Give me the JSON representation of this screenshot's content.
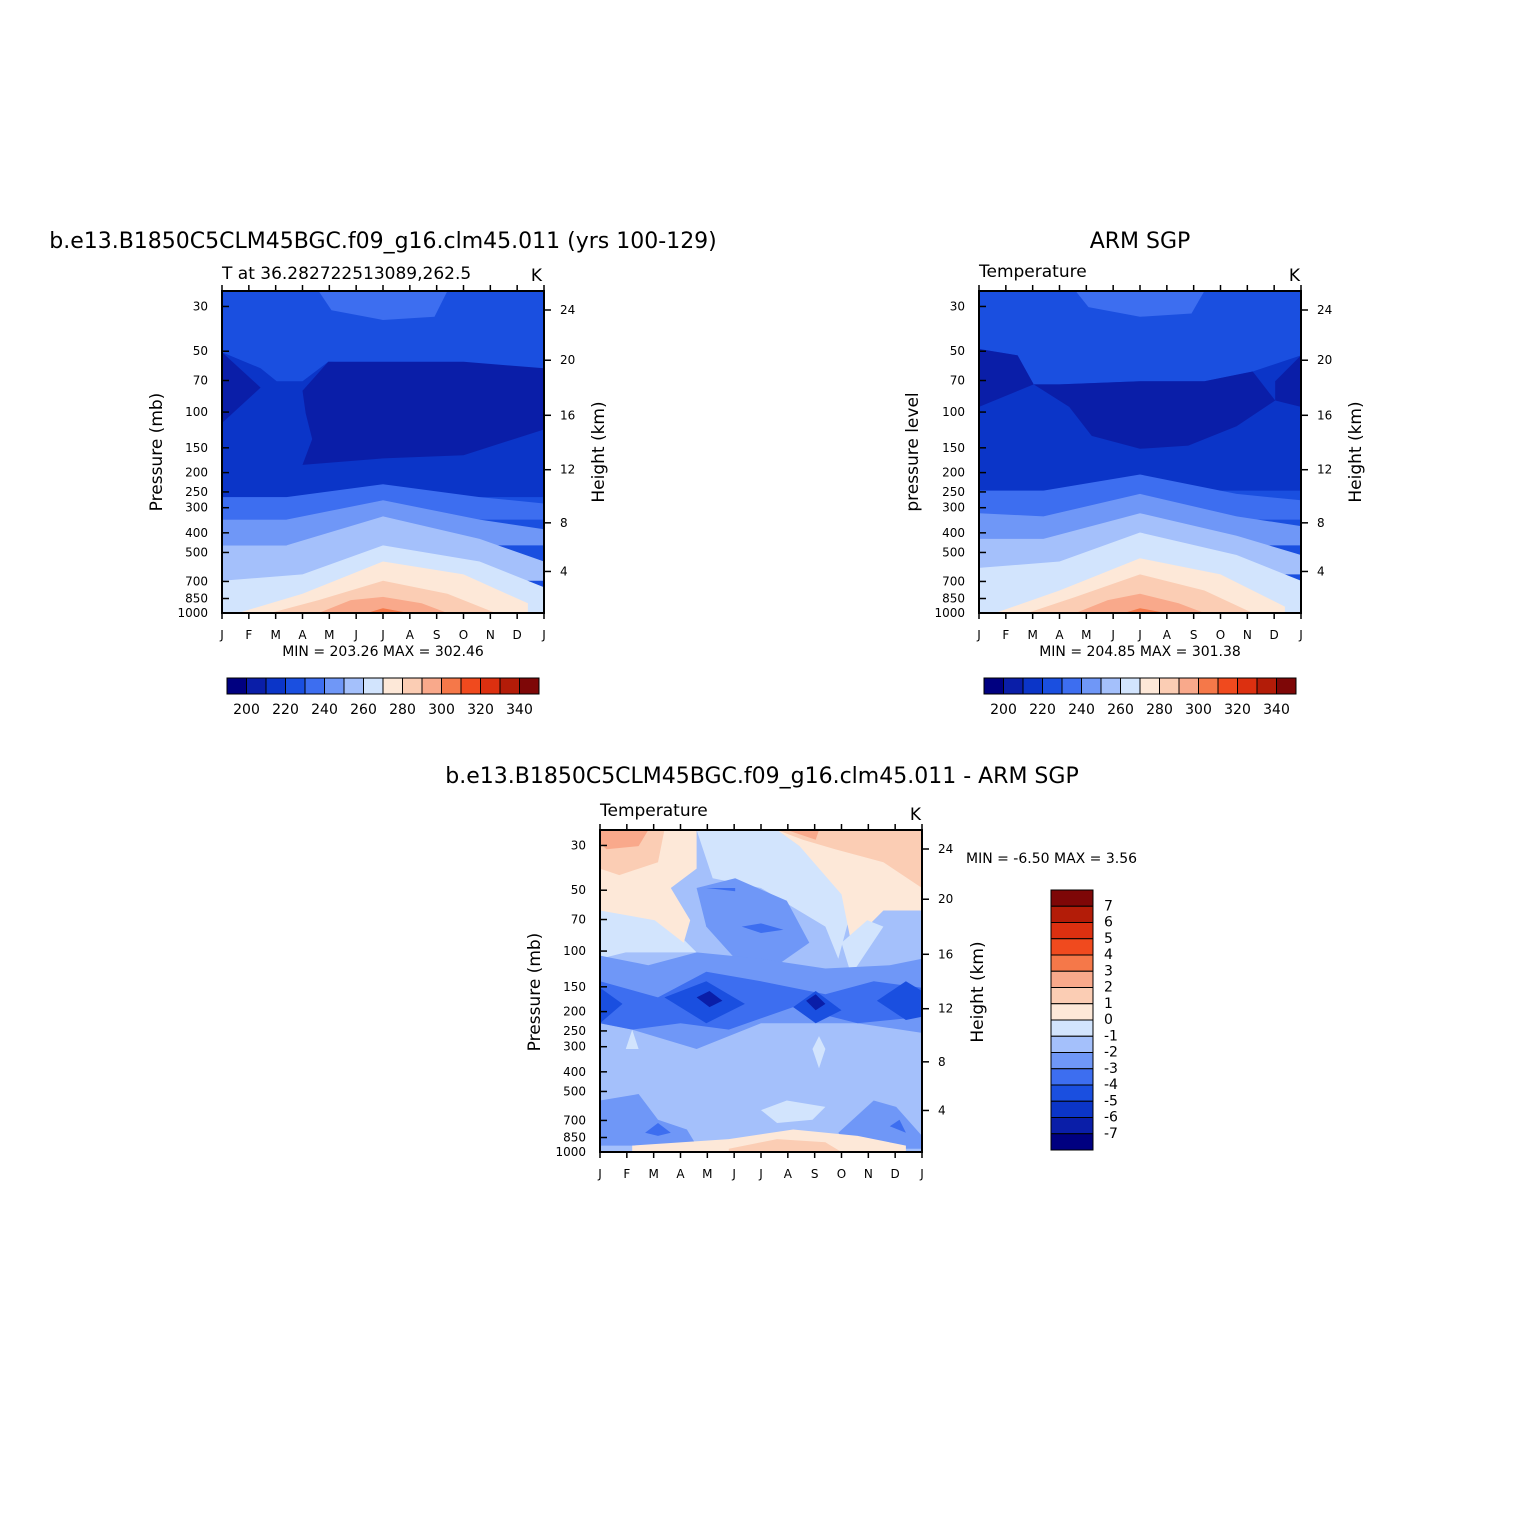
{
  "colors": {
    "abs_scale": [
      "#000080",
      "#0a1ea8",
      "#0b35c8",
      "#1a4fe0",
      "#3d6ef0",
      "#6f97f7",
      "#a4c0fb",
      "#d2e4fd",
      "#fde8d8",
      "#fbcdb4",
      "#f9a98b",
      "#f57849",
      "#f04a1e",
      "#dc3010",
      "#b31c08",
      "#7e0707"
    ],
    "diff_scale": [
      "#000080",
      "#0a1ea8",
      "#0b35c8",
      "#1a4fe0",
      "#3d6ef0",
      "#6f97f7",
      "#a4c0fb",
      "#d2e4fd",
      "#fde8d8",
      "#fbcdb4",
      "#f9a98b",
      "#f57849",
      "#f04a1e",
      "#dc3010",
      "#b31c08",
      "#7e0707"
    ]
  },
  "chart_data": [
    {
      "type": "heatmap",
      "title": "b.e13.B1850C5CLM45BGC.f09_g16.clm45.011 (yrs 100-129)",
      "subtitle_left": "T at 36.282722513089,262.5",
      "units": "K",
      "ylabel": "Pressure (mb)",
      "ylabel_right": "Height (km)",
      "x_ticks": [
        "J",
        "F",
        "M",
        "A",
        "M",
        "J",
        "J",
        "A",
        "S",
        "O",
        "N",
        "D",
        "J"
      ],
      "y_ticks": [
        "30",
        "50",
        "70",
        "100",
        "150",
        "200",
        "250",
        "300",
        "400",
        "500",
        "700",
        "850",
        "1000"
      ],
      "y_right_ticks": [
        "24",
        "20",
        "16",
        "12",
        "8",
        "4"
      ],
      "min_label": "MIN = 203.26 MAX = 302.46",
      "min": 203.26,
      "max": 302.46,
      "colorbar_labels": [
        "200",
        "220",
        "240",
        "260",
        "280",
        "300",
        "320",
        "340"
      ]
    },
    {
      "type": "heatmap",
      "title": "ARM SGP",
      "subtitle_left": "Temperature",
      "units": "K",
      "ylabel": "pressure level",
      "ylabel_right": "Height (km)",
      "x_ticks": [
        "J",
        "F",
        "M",
        "A",
        "M",
        "J",
        "J",
        "A",
        "S",
        "O",
        "N",
        "D",
        "J"
      ],
      "y_ticks": [
        "30",
        "50",
        "70",
        "100",
        "150",
        "200",
        "250",
        "300",
        "400",
        "500",
        "700",
        "850",
        "1000"
      ],
      "y_right_ticks": [
        "24",
        "20",
        "16",
        "12",
        "8",
        "4"
      ],
      "min_label": "MIN = 204.85 MAX = 301.38",
      "min": 204.85,
      "max": 301.38,
      "colorbar_labels": [
        "200",
        "220",
        "240",
        "260",
        "280",
        "300",
        "320",
        "340"
      ]
    },
    {
      "type": "heatmap",
      "title": "b.e13.B1850C5CLM45BGC.f09_g16.clm45.011 - ARM SGP",
      "subtitle_left": "Temperature",
      "units": "K",
      "ylabel": "Pressure (mb)",
      "ylabel_right": "Height (km)",
      "x_ticks": [
        "J",
        "F",
        "M",
        "A",
        "M",
        "J",
        "J",
        "A",
        "S",
        "O",
        "N",
        "D",
        "J"
      ],
      "y_ticks": [
        "30",
        "50",
        "70",
        "100",
        "150",
        "200",
        "250",
        "300",
        "400",
        "500",
        "700",
        "850",
        "1000"
      ],
      "y_right_ticks": [
        "24",
        "20",
        "16",
        "12",
        "8",
        "4"
      ],
      "min_label": "MIN = -6.50 MAX = 3.56",
      "min": -6.5,
      "max": 3.56,
      "colorbar_labels": [
        "7",
        "6",
        "5",
        "4",
        "3",
        "2",
        "1",
        "0",
        "-1",
        "-2",
        "-3",
        "-4",
        "-5",
        "-6",
        "-7"
      ]
    }
  ]
}
